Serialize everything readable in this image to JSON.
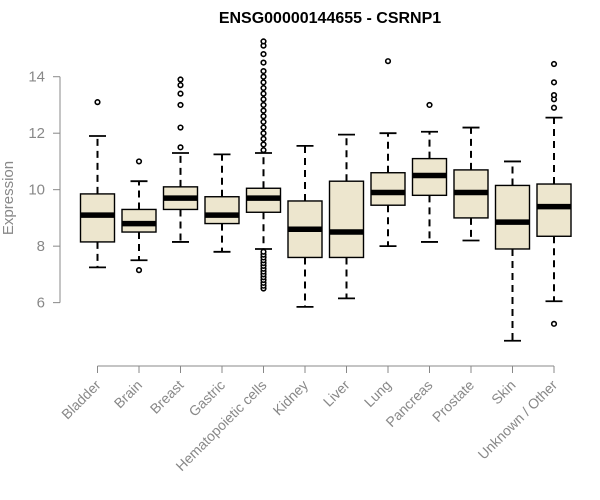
{
  "chart_data": {
    "type": "boxplot",
    "title": "ENSG00000144655 - CSRNP1",
    "xlabel": "",
    "ylabel": "Expression",
    "ylim": [
      4.5,
      15.3
    ],
    "yticks": [
      6,
      8,
      10,
      12,
      14
    ],
    "colors": {
      "box_fill": "#ede6ce",
      "stroke": "#000000",
      "axis": "#888888"
    },
    "categories": [
      "Bladder",
      "Brain",
      "Breast",
      "Gastric",
      "Hematopoietic cells",
      "Kidney",
      "Liver",
      "Lung",
      "Pancreas",
      "Prostate",
      "Skin",
      "Unknown / Other"
    ],
    "boxes": [
      {
        "category": "Bladder",
        "whisker_low": 7.25,
        "q1": 8.15,
        "median": 9.1,
        "q3": 9.85,
        "whisker_high": 11.9,
        "outliers": [
          13.1
        ]
      },
      {
        "category": "Brain",
        "whisker_low": 7.5,
        "q1": 8.5,
        "median": 8.8,
        "q3": 9.3,
        "whisker_high": 10.3,
        "outliers": [
          7.15,
          11.0
        ]
      },
      {
        "category": "Breast",
        "whisker_low": 8.15,
        "q1": 9.3,
        "median": 9.7,
        "q3": 10.1,
        "whisker_high": 11.3,
        "outliers": [
          11.5,
          12.2,
          13.0,
          13.4,
          13.7,
          13.9
        ]
      },
      {
        "category": "Gastric",
        "whisker_low": 7.8,
        "q1": 8.8,
        "median": 9.1,
        "q3": 9.75,
        "whisker_high": 11.25,
        "outliers": []
      },
      {
        "category": "Hematopoietic cells",
        "whisker_low": 7.9,
        "q1": 9.2,
        "median": 9.7,
        "q3": 10.05,
        "whisker_high": 11.3,
        "outliers": [
          6.5,
          6.6,
          6.7,
          6.8,
          6.9,
          7.0,
          7.1,
          7.2,
          7.3,
          7.4,
          7.5,
          7.6,
          7.7,
          7.8,
          11.4,
          11.6,
          11.8,
          12.0,
          12.2,
          12.4,
          12.6,
          12.8,
          13.0,
          13.2,
          13.4,
          13.6,
          13.8,
          14.0,
          14.2,
          14.5,
          14.8,
          15.1,
          15.25
        ]
      },
      {
        "category": "Kidney",
        "whisker_low": 5.85,
        "q1": 7.6,
        "median": 8.6,
        "q3": 9.6,
        "whisker_high": 11.55,
        "outliers": []
      },
      {
        "category": "Liver",
        "whisker_low": 6.15,
        "q1": 7.6,
        "median": 8.5,
        "q3": 10.3,
        "whisker_high": 11.95,
        "outliers": []
      },
      {
        "category": "Lung",
        "whisker_low": 8.0,
        "q1": 9.45,
        "median": 9.9,
        "q3": 10.6,
        "whisker_high": 12.0,
        "outliers": [
          14.55
        ]
      },
      {
        "category": "Pancreas",
        "whisker_low": 8.15,
        "q1": 9.8,
        "median": 10.5,
        "q3": 11.1,
        "whisker_high": 12.05,
        "outliers": [
          13.0
        ]
      },
      {
        "category": "Prostate",
        "whisker_low": 8.2,
        "q1": 9.0,
        "median": 9.9,
        "q3": 10.7,
        "whisker_high": 12.2,
        "outliers": []
      },
      {
        "category": "Skin",
        "whisker_low": 4.65,
        "q1": 7.9,
        "median": 8.85,
        "q3": 10.15,
        "whisker_high": 11.0,
        "outliers": []
      },
      {
        "category": "Unknown / Other",
        "whisker_low": 6.05,
        "q1": 8.35,
        "median": 9.4,
        "q3": 10.2,
        "whisker_high": 12.55,
        "outliers": [
          5.25,
          12.9,
          13.2,
          13.35,
          13.8,
          14.45
        ]
      }
    ]
  }
}
